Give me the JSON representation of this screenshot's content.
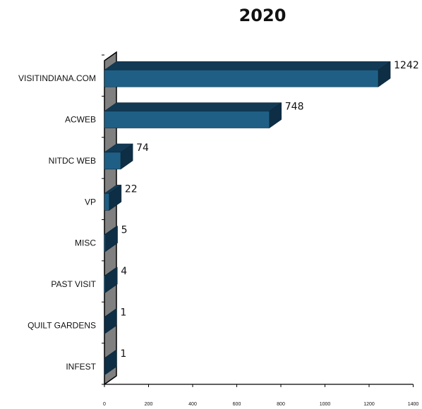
{
  "chart_data": {
    "type": "bar",
    "orientation": "horizontal",
    "title": "2020",
    "categories": [
      "VISITINDIANA.COM",
      "ACWEB",
      "NITDC WEB",
      "VP",
      "MISC",
      "PAST VISIT",
      "QUILT GARDENS",
      "INFEST"
    ],
    "values": [
      1242,
      748,
      74,
      22,
      5,
      4,
      1,
      1
    ],
    "value_labels": [
      "1242",
      "748",
      "74",
      "22",
      "5",
      "4",
      "1",
      "1"
    ],
    "xlim": [
      0,
      1400
    ],
    "x_ticks": [
      "0",
      "200",
      "400",
      "600",
      "800",
      "1000",
      "1200",
      "1400"
    ],
    "legend": "none",
    "style": "3d"
  },
  "colors": {
    "bar_front": "#1f5f85",
    "bar_top": "#123a55",
    "bar_side": "#0d2e45",
    "wall": "#808080",
    "axis": "#000000"
  }
}
